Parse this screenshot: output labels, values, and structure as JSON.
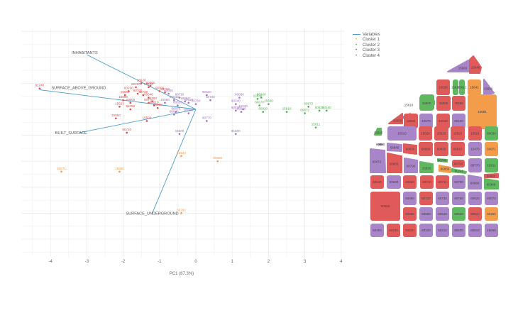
{
  "chart_data": {
    "type": "scatter",
    "subtype": "pca-biplot",
    "title": "",
    "xlabel": "PC1 (67.3%)",
    "ylabel": "",
    "xlim": [
      -4.4,
      4.1
    ],
    "ylim": [
      -4.1,
      2.3
    ],
    "x_ticks": [
      "-4",
      "-3",
      "-2",
      "-1",
      "0",
      "1",
      "2",
      "3",
      "4"
    ],
    "x_tick_values": [
      -4,
      -3,
      -2,
      -1,
      0,
      1,
      2,
      3,
      4
    ],
    "grid": true,
    "legend_position": "top-right",
    "legend": [
      {
        "name": "Variables",
        "color": "#4a9ec9",
        "symbol": "line"
      },
      {
        "name": "Cluster 1",
        "color": "#f39c4a",
        "symbol": "point"
      },
      {
        "name": "Cluster 2",
        "color": "#4fae4f",
        "symbol": "point"
      },
      {
        "name": "Cluster 3",
        "color": "#e04b4b",
        "symbol": "point"
      },
      {
        "name": "Cluster 4",
        "color": "#a070c0",
        "symbol": "point"
      }
    ],
    "variables": [
      {
        "name": "INHABITANTS",
        "x": -3.0,
        "y": 2.1
      },
      {
        "name": "SURFACE_ABOVE_GROUND",
        "x": -4.3,
        "y": 0.75
      },
      {
        "name": "BUILT_SURFACE",
        "x": -3.2,
        "y": -0.9
      },
      {
        "name": "SURFACE_UNDERGROUND",
        "x": -1.2,
        "y": -4.0
      }
    ],
    "series": [
      {
        "name": "Cluster 1",
        "color": "#f39c4a",
        "points": [
          {
            "x": -3.7,
            "y": -2.4,
            "label": "60871"
          },
          {
            "x": -2.1,
            "y": -2.4,
            "label": "15580"
          },
          {
            "x": -0.4,
            "y": -1.8,
            "label": "15540"
          },
          {
            "x": 0.6,
            "y": -2.0,
            "label": "60650"
          },
          {
            "x": -0.4,
            "y": -4.0,
            "label": "60260"
          }
        ]
      },
      {
        "name": "Cluster 2",
        "color": "#4fae4f",
        "points": [
          {
            "x": 1.7,
            "y": 0.4,
            "label": "15830"
          },
          {
            "x": 1.8,
            "y": 0.45,
            "label": "60340"
          },
          {
            "x": 2.0,
            "y": 0.2,
            "label": "15680"
          },
          {
            "x": 1.75,
            "y": 0.15,
            "label": "60670"
          },
          {
            "x": 1.85,
            "y": -0.1,
            "label": "60020"
          },
          {
            "x": 2.5,
            "y": -0.1,
            "label": "15810"
          },
          {
            "x": 3.1,
            "y": 0.1,
            "label": "60873"
          },
          {
            "x": 3.0,
            "y": -0.15,
            "label": "60872"
          },
          {
            "x": 3.4,
            "y": -0.05,
            "label": "60830"
          },
          {
            "x": 3.6,
            "y": -0.05,
            "label": "60340"
          },
          {
            "x": 3.3,
            "y": -0.7,
            "label": "15811"
          }
        ]
      },
      {
        "name": "Cluster 3",
        "color": "#e04b4b",
        "points": [
          {
            "x": -4.3,
            "y": 0.8,
            "label": "81240"
          },
          {
            "x": -1.5,
            "y": 1.0,
            "label": "15520"
          },
          {
            "x": -1.65,
            "y": 0.85,
            "label": "60220"
          },
          {
            "x": -1.3,
            "y": 0.85,
            "label": "60510"
          },
          {
            "x": -1.25,
            "y": 0.9,
            "label": "60850"
          },
          {
            "x": -1.85,
            "y": 0.7,
            "label": "60290"
          },
          {
            "x": -1.95,
            "y": 0.55,
            "label": "15560"
          },
          {
            "x": -1.6,
            "y": 0.6,
            "label": "60700"
          },
          {
            "x": -1.45,
            "y": 0.55,
            "label": "60720"
          },
          {
            "x": -1.3,
            "y": 0.45,
            "label": "60640"
          },
          {
            "x": -2.0,
            "y": 0.35,
            "label": "15590"
          },
          {
            "x": -1.8,
            "y": 0.25,
            "label": "60800"
          },
          {
            "x": -2.1,
            "y": 0.1,
            "label": "15523"
          },
          {
            "x": -1.8,
            "y": 0.0,
            "label": "81050"
          },
          {
            "x": -1.3,
            "y": 0.25,
            "label": "60770"
          },
          {
            "x": -1.15,
            "y": 0.15,
            "label": "60810"
          },
          {
            "x": -1.05,
            "y": 0.05,
            "label": "60860"
          },
          {
            "x": -1.2,
            "y": 0.3,
            "label": "60750"
          },
          {
            "x": -1.0,
            "y": 0.7,
            "label": "60300"
          },
          {
            "x": -0.85,
            "y": 0.65,
            "label": "60710"
          },
          {
            "x": -2.2,
            "y": -0.35,
            "label": "15550"
          },
          {
            "x": -1.35,
            "y": -0.45,
            "label": "15500"
          },
          {
            "x": -1.9,
            "y": -0.9,
            "label": "80720"
          }
        ]
      },
      {
        "name": "Cluster 4",
        "color": "#a070c0",
        "points": [
          {
            "x": -0.75,
            "y": 0.6,
            "label": "60650"
          },
          {
            "x": -0.45,
            "y": 0.45,
            "label": "60710"
          },
          {
            "x": -0.6,
            "y": 0.35,
            "label": "60540"
          },
          {
            "x": -0.3,
            "y": 0.3,
            "label": "15560"
          },
          {
            "x": -0.85,
            "y": 0.25,
            "label": "15560"
          },
          {
            "x": -0.5,
            "y": 0.15,
            "label": "60820"
          },
          {
            "x": -0.2,
            "y": 0.25,
            "label": "60630"
          },
          {
            "x": 0.3,
            "y": 0.55,
            "label": "60620"
          },
          {
            "x": 0.0,
            "y": 0.2,
            "label": "60740"
          },
          {
            "x": 0.4,
            "y": 0.35,
            "label": "60740"
          },
          {
            "x": -0.55,
            "y": -0.1,
            "label": "60670"
          },
          {
            "x": -0.6,
            "y": -0.2,
            "label": "60640"
          },
          {
            "x": -0.2,
            "y": -0.15,
            "label": "60680"
          },
          {
            "x": 0.3,
            "y": -0.45,
            "label": "60770"
          },
          {
            "x": -0.45,
            "y": -0.95,
            "label": "15500"
          },
          {
            "x": 1.2,
            "y": 0.45,
            "label": "60860"
          },
          {
            "x": 1.1,
            "y": 0.2,
            "label": "60340"
          },
          {
            "x": 1.3,
            "y": 0.0,
            "label": "15920"
          },
          {
            "x": 1.1,
            "y": -0.05,
            "label": "60630"
          },
          {
            "x": 1.25,
            "y": -0.1,
            "label": "15500"
          },
          {
            "x": 1.1,
            "y": -0.95,
            "label": "81030"
          }
        ]
      }
    ]
  },
  "map": {
    "title": "",
    "colors": {
      "cluster1": "#f39c4a",
      "cluster2": "#5fb85f",
      "cluster3": "#e05a5a",
      "cluster4": "#a884c8"
    },
    "blocks": [
      {
        "label": "15660",
        "cluster": "cluster4"
      },
      {
        "label": "15640",
        "cluster": "cluster3"
      },
      {
        "label": "15620",
        "cluster": "cluster3"
      },
      {
        "label": "15611",
        "cluster": "cluster2"
      },
      {
        "label": "15612",
        "cluster": "cluster2"
      },
      {
        "label": "15641",
        "cluster": "cluster1"
      },
      {
        "label": "15650",
        "cluster": "cluster4"
      },
      {
        "label": "15610",
        "cluster": "cluster2"
      },
      {
        "label": "15600",
        "cluster": "cluster2"
      },
      {
        "label": "15590",
        "cluster": "cluster3"
      },
      {
        "label": "15580",
        "cluster": "cluster3"
      },
      {
        "label": "15581",
        "cluster": "cluster1"
      },
      {
        "label": "15530",
        "cluster": "cluster4"
      },
      {
        "label": "15560",
        "cluster": "cluster3"
      },
      {
        "label": "15550",
        "cluster": "cluster3"
      },
      {
        "label": "15570",
        "cluster": "cluster4"
      },
      {
        "label": "15540",
        "cluster": "cluster3"
      },
      {
        "label": "60100",
        "cluster": "cluster4"
      },
      {
        "label": "15500",
        "cluster": "cluster2"
      },
      {
        "label": "15510",
        "cluster": "cluster4"
      },
      {
        "label": "15520",
        "cluster": "cluster3"
      },
      {
        "label": "15523",
        "cluster": "cluster3"
      },
      {
        "label": "15522",
        "cluster": "cluster3"
      },
      {
        "label": "15521",
        "cluster": "cluster3"
      },
      {
        "label": "60030",
        "cluster": "cluster2"
      },
      {
        "label": "60860",
        "cluster": "cluster4"
      },
      {
        "label": "60840",
        "cluster": "cluster4"
      },
      {
        "label": "60830",
        "cluster": "cluster3"
      },
      {
        "label": "60850",
        "cluster": "cluster3"
      },
      {
        "label": "60820",
        "cluster": "cluster3"
      },
      {
        "label": "60810",
        "cluster": "cluster3"
      },
      {
        "label": "15470",
        "cluster": "cluster4"
      },
      {
        "label": "60871",
        "cluster": "cluster1"
      },
      {
        "label": "60872",
        "cluster": "cluster4"
      },
      {
        "label": "60800",
        "cluster": "cluster3"
      },
      {
        "label": "60790",
        "cluster": "cluster4"
      },
      {
        "label": "15830",
        "cluster": "cluster2"
      },
      {
        "label": "60780",
        "cluster": "cluster2"
      },
      {
        "label": "60650",
        "cluster": "cluster1"
      },
      {
        "label": "60750",
        "cluster": "cluster3"
      },
      {
        "label": "60770",
        "cluster": "cluster4"
      },
      {
        "label": "15811",
        "cluster": "cluster2"
      },
      {
        "label": "60740",
        "cluster": "cluster2"
      },
      {
        "label": "60600",
        "cluster": "cluster3"
      },
      {
        "label": "60640",
        "cluster": "cluster3"
      },
      {
        "label": "60630",
        "cluster": "cluster4"
      },
      {
        "label": "60650b",
        "cluster": "cluster3"
      },
      {
        "label": "60710",
        "cluster": "cluster3"
      },
      {
        "label": "60711",
        "cluster": "cluster3"
      },
      {
        "label": "60700",
        "cluster": "cluster4"
      },
      {
        "label": "60680",
        "cluster": "cluster4"
      },
      {
        "label": "60340",
        "cluster": "cluster2"
      },
      {
        "label": "60580",
        "cluster": "cluster3"
      },
      {
        "label": "60690",
        "cluster": "cluster4"
      },
      {
        "label": "60720",
        "cluster": "cluster3"
      },
      {
        "label": "60730",
        "cluster": "cluster4"
      },
      {
        "label": "60760",
        "cluster": "cluster4"
      },
      {
        "label": "60620",
        "cluster": "cluster4"
      },
      {
        "label": "60570",
        "cluster": "cluster4"
      },
      {
        "label": "60560",
        "cluster": "cluster3"
      },
      {
        "label": "60550",
        "cluster": "cluster4"
      },
      {
        "label": "60540",
        "cluster": "cluster4"
      },
      {
        "label": "60520",
        "cluster": "cluster2"
      },
      {
        "label": "60510",
        "cluster": "cluster3"
      },
      {
        "label": "60260",
        "cluster": "cluster1"
      },
      {
        "label": "60250",
        "cluster": "cluster4"
      },
      {
        "label": "60240",
        "cluster": "cluster3"
      },
      {
        "label": "60230",
        "cluster": "cluster3"
      },
      {
        "label": "60220",
        "cluster": "cluster4"
      },
      {
        "label": "60210",
        "cluster": "cluster4"
      },
      {
        "label": "60200",
        "cluster": "cluster4"
      },
      {
        "label": "60610",
        "cluster": "cluster4"
      }
    ]
  }
}
